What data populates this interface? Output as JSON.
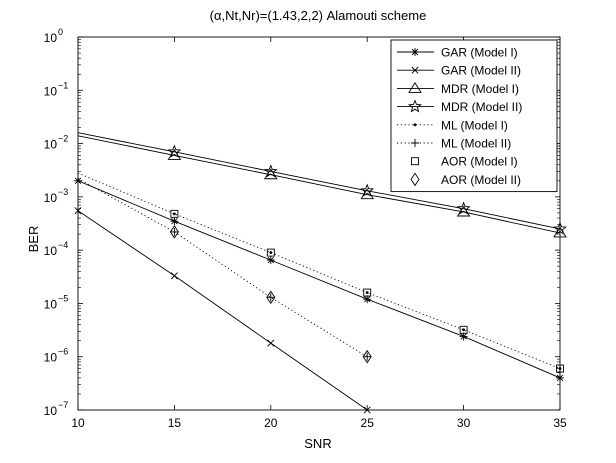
{
  "chart_data": {
    "type": "line",
    "title": "(α,Nt,Nr)=(1.43,2,2) Alamouti scheme",
    "xlabel": "SNR",
    "ylabel": "BER",
    "xlim": [
      10,
      35
    ],
    "ylim": [
      1e-07,
      1
    ],
    "yscale": "log",
    "grid": false,
    "legend_position": "top-right",
    "x_ticks": [
      10,
      15,
      20,
      25,
      30,
      35
    ],
    "y_ticks": [
      {
        "value": 1,
        "base": "10",
        "exp": "0"
      },
      {
        "value": 0.1,
        "base": "10",
        "exp": "−1"
      },
      {
        "value": 0.01,
        "base": "10",
        "exp": "−2"
      },
      {
        "value": 0.001,
        "base": "10",
        "exp": "−3"
      },
      {
        "value": 0.0001,
        "base": "10",
        "exp": "−4"
      },
      {
        "value": 1e-05,
        "base": "10",
        "exp": "−5"
      },
      {
        "value": 1e-06,
        "base": "10",
        "exp": "−6"
      },
      {
        "value": 1e-07,
        "base": "10",
        "exp": "−7"
      }
    ],
    "series": [
      {
        "name": "GAR (Model I)",
        "marker": "asterisk",
        "line": "solid",
        "marker_points": [
          0,
          1,
          2,
          3,
          4,
          5
        ],
        "x": [
          10,
          15,
          20,
          25,
          30,
          35
        ],
        "y": [
          0.002,
          0.00035,
          6.5e-05,
          1.2e-05,
          2.4e-06,
          4e-07
        ]
      },
      {
        "name": "GAR (Model II)",
        "marker": "x",
        "line": "solid",
        "marker_points": [
          0,
          1,
          2,
          3
        ],
        "x": [
          10,
          15,
          20,
          25
        ],
        "y": [
          0.00055,
          3.3e-05,
          1.8e-06,
          1e-07
        ]
      },
      {
        "name": "MDR (Model I)",
        "marker": "triangle",
        "line": "solid",
        "marker_points": [
          1,
          2,
          3,
          4,
          5
        ],
        "x": [
          10,
          15,
          20,
          25,
          30,
          35
        ],
        "y": [
          0.014,
          0.006,
          0.0026,
          0.0011,
          0.00052,
          0.00021
        ]
      },
      {
        "name": "MDR (Model II)",
        "marker": "star",
        "line": "solid",
        "marker_points": [
          1,
          2,
          3,
          4,
          5
        ],
        "x": [
          10,
          15,
          20,
          25,
          30,
          35
        ],
        "y": [
          0.016,
          0.007,
          0.003,
          0.0013,
          0.0006,
          0.00025
        ]
      },
      {
        "name": "ML (Model I)",
        "marker": "dot",
        "line": "dotted",
        "marker_points": [
          1,
          2,
          3,
          4,
          5
        ],
        "x": [
          10,
          15,
          20,
          25,
          30,
          35
        ],
        "y": [
          0.0028,
          0.00048,
          9e-05,
          1.6e-05,
          3.2e-06,
          6e-07
        ]
      },
      {
        "name": "ML (Model II)",
        "marker": "plus",
        "line": "dotted",
        "marker_points": [
          1,
          2,
          3
        ],
        "x": [
          10,
          15,
          20,
          25
        ],
        "y": [
          0.0022,
          0.00022,
          1.3e-05,
          1e-06
        ]
      },
      {
        "name": "AOR (Model I)",
        "marker": "square",
        "line": "none",
        "marker_points": [
          0,
          1,
          2,
          3,
          4
        ],
        "x": [
          15,
          20,
          25,
          30,
          35
        ],
        "y": [
          0.00048,
          9e-05,
          1.6e-05,
          3.2e-06,
          6e-07
        ]
      },
      {
        "name": "AOR (Model II)",
        "marker": "diamond",
        "line": "none",
        "marker_points": [
          0,
          1,
          2
        ],
        "x": [
          15,
          20,
          25
        ],
        "y": [
          0.00022,
          1.3e-05,
          1e-06
        ]
      }
    ]
  }
}
